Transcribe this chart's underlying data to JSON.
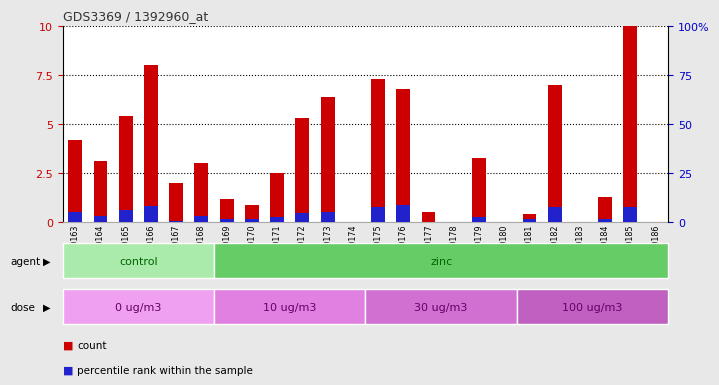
{
  "title": "GDS3369 / 1392960_at",
  "samples": [
    "GSM280163",
    "GSM280164",
    "GSM280165",
    "GSM280166",
    "GSM280167",
    "GSM280168",
    "GSM280169",
    "GSM280170",
    "GSM280171",
    "GSM280172",
    "GSM280173",
    "GSM280174",
    "GSM280175",
    "GSM280176",
    "GSM280177",
    "GSM280178",
    "GSM280179",
    "GSM280180",
    "GSM280181",
    "GSM280182",
    "GSM280183",
    "GSM280184",
    "GSM280185",
    "GSM280186"
  ],
  "red_values": [
    4.2,
    3.1,
    5.4,
    8.0,
    2.0,
    3.0,
    1.2,
    0.9,
    2.5,
    5.3,
    6.4,
    0.02,
    7.3,
    6.8,
    0.5,
    0.02,
    3.3,
    0.02,
    0.4,
    7.0,
    0.02,
    1.3,
    10.0,
    0.02
  ],
  "blue_values": [
    0.5,
    0.3,
    0.6,
    0.8,
    0.05,
    0.3,
    0.15,
    0.15,
    0.25,
    0.45,
    0.5,
    0.02,
    0.75,
    0.9,
    0.02,
    0.02,
    0.25,
    0.02,
    0.15,
    0.75,
    0.02,
    0.15,
    0.75,
    0.02
  ],
  "ylim": [
    0,
    10
  ],
  "yticks_left": [
    0,
    2.5,
    5.0,
    7.5,
    10
  ],
  "yticks_right": [
    0,
    25,
    50,
    75,
    100
  ],
  "red_color": "#cc0000",
  "blue_color": "#2222cc",
  "bg_color": "#e8e8e8",
  "plot_bg": "#ffffff",
  "ytick_color_left": "#cc0000",
  "ytick_color_right": "#0000cc",
  "agent_groups": [
    {
      "label": "control",
      "start": 0,
      "end": 6,
      "color": "#aaeaaa"
    },
    {
      "label": "zinc",
      "start": 6,
      "end": 24,
      "color": "#66cc66"
    }
  ],
  "dose_groups": [
    {
      "label": "0 ug/m3",
      "start": 0,
      "end": 6,
      "color": "#f0a0f0"
    },
    {
      "label": "10 ug/m3",
      "start": 6,
      "end": 12,
      "color": "#e080e0"
    },
    {
      "label": "30 ug/m3",
      "start": 12,
      "end": 18,
      "color": "#d070d0"
    },
    {
      "label": "100 ug/m3",
      "start": 18,
      "end": 24,
      "color": "#c060c0"
    }
  ],
  "agent_text_color": "#006600",
  "dose_text_color": "#660066"
}
